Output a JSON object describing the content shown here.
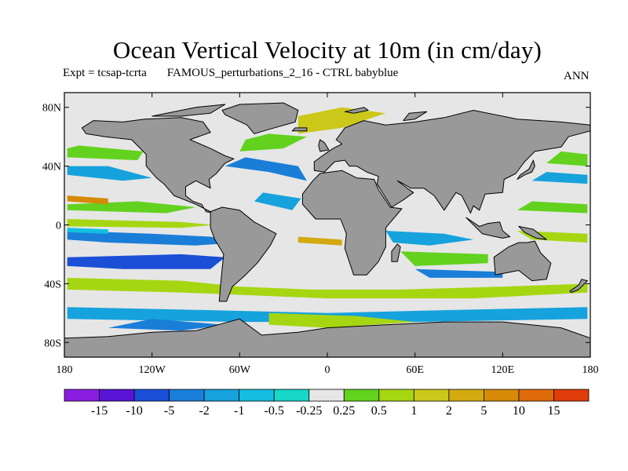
{
  "title": "Ocean Vertical Velocity at 10m (in cm/day)",
  "subtitle": {
    "expt": "Expt = tcsap-tcrta",
    "description": "FAMOUS_perturbations_2_16 - CTRL babyblue",
    "period": "ANN"
  },
  "map": {
    "lon_range": [
      -180,
      180
    ],
    "lat_range": [
      -90,
      90
    ],
    "land_color": "#999999",
    "coast_color": "#000000",
    "lat_ticks": [
      {
        "value": 80,
        "label": "80N"
      },
      {
        "value": 40,
        "label": "40N"
      },
      {
        "value": 0,
        "label": "0"
      },
      {
        "value": -40,
        "label": "40S"
      },
      {
        "value": -80,
        "label": "80S"
      }
    ],
    "lon_ticks": [
      {
        "value": -180,
        "label": "180"
      },
      {
        "value": -120,
        "label": "120W"
      },
      {
        "value": -60,
        "label": "60W"
      },
      {
        "value": 0,
        "label": "0"
      },
      {
        "value": 60,
        "label": "60E"
      },
      {
        "value": 120,
        "label": "120E"
      },
      {
        "value": 180,
        "label": "180"
      }
    ]
  },
  "colorbar": {
    "colors": [
      "#8a1ee0",
      "#5a14d8",
      "#1a4fd6",
      "#1a7ed8",
      "#16a2dc",
      "#14bee0",
      "#18d6c8",
      "#e6e6e6",
      "#62d21e",
      "#a6d612",
      "#ccc81a",
      "#d2aa10",
      "#d68a08",
      "#de6a0a",
      "#e03c0a"
    ],
    "labels": [
      "-15",
      "-10",
      "-5",
      "-2",
      "-1",
      "-0.5",
      "-0.25",
      "0.25",
      "0.5",
      "1",
      "2",
      "5",
      "10",
      "15"
    ]
  }
}
